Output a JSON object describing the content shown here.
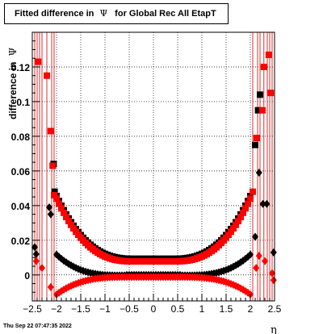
{
  "title_prefix": "Fitted difference in ",
  "title_symbol": "Ψ",
  "title_suffix": " for Global Rec All EtapT",
  "timestamp": "Thu Sep 22 07:47:35 2022",
  "chart_data": {
    "type": "scatter",
    "xlabel": "η",
    "ylabel_prefix": "difference in ",
    "ylabel_symbol": "Ψ",
    "xlim": [
      -2.5,
      2.5
    ],
    "ylim": [
      -0.015,
      0.14
    ],
    "x_ticks": [
      "−2.5",
      "−2",
      "−1.5",
      "−1",
      "−0.5",
      "0",
      "0.5",
      "1",
      "1.5",
      "2",
      "2.5"
    ],
    "x_tick_values": [
      -2.5,
      -2,
      -1.5,
      -1,
      -0.5,
      0,
      0.5,
      1,
      1.5,
      2,
      2.5
    ],
    "y_ticks": [
      "0",
      "0.02",
      "0.04",
      "0.06",
      "0.08",
      "0.1",
      "0.12"
    ],
    "y_tick_values": [
      0,
      0.02,
      0.04,
      0.06,
      0.08,
      0.1,
      0.12
    ],
    "grid": true,
    "series_colors": {
      "black": "#000000",
      "red": "#ff0000"
    }
  }
}
